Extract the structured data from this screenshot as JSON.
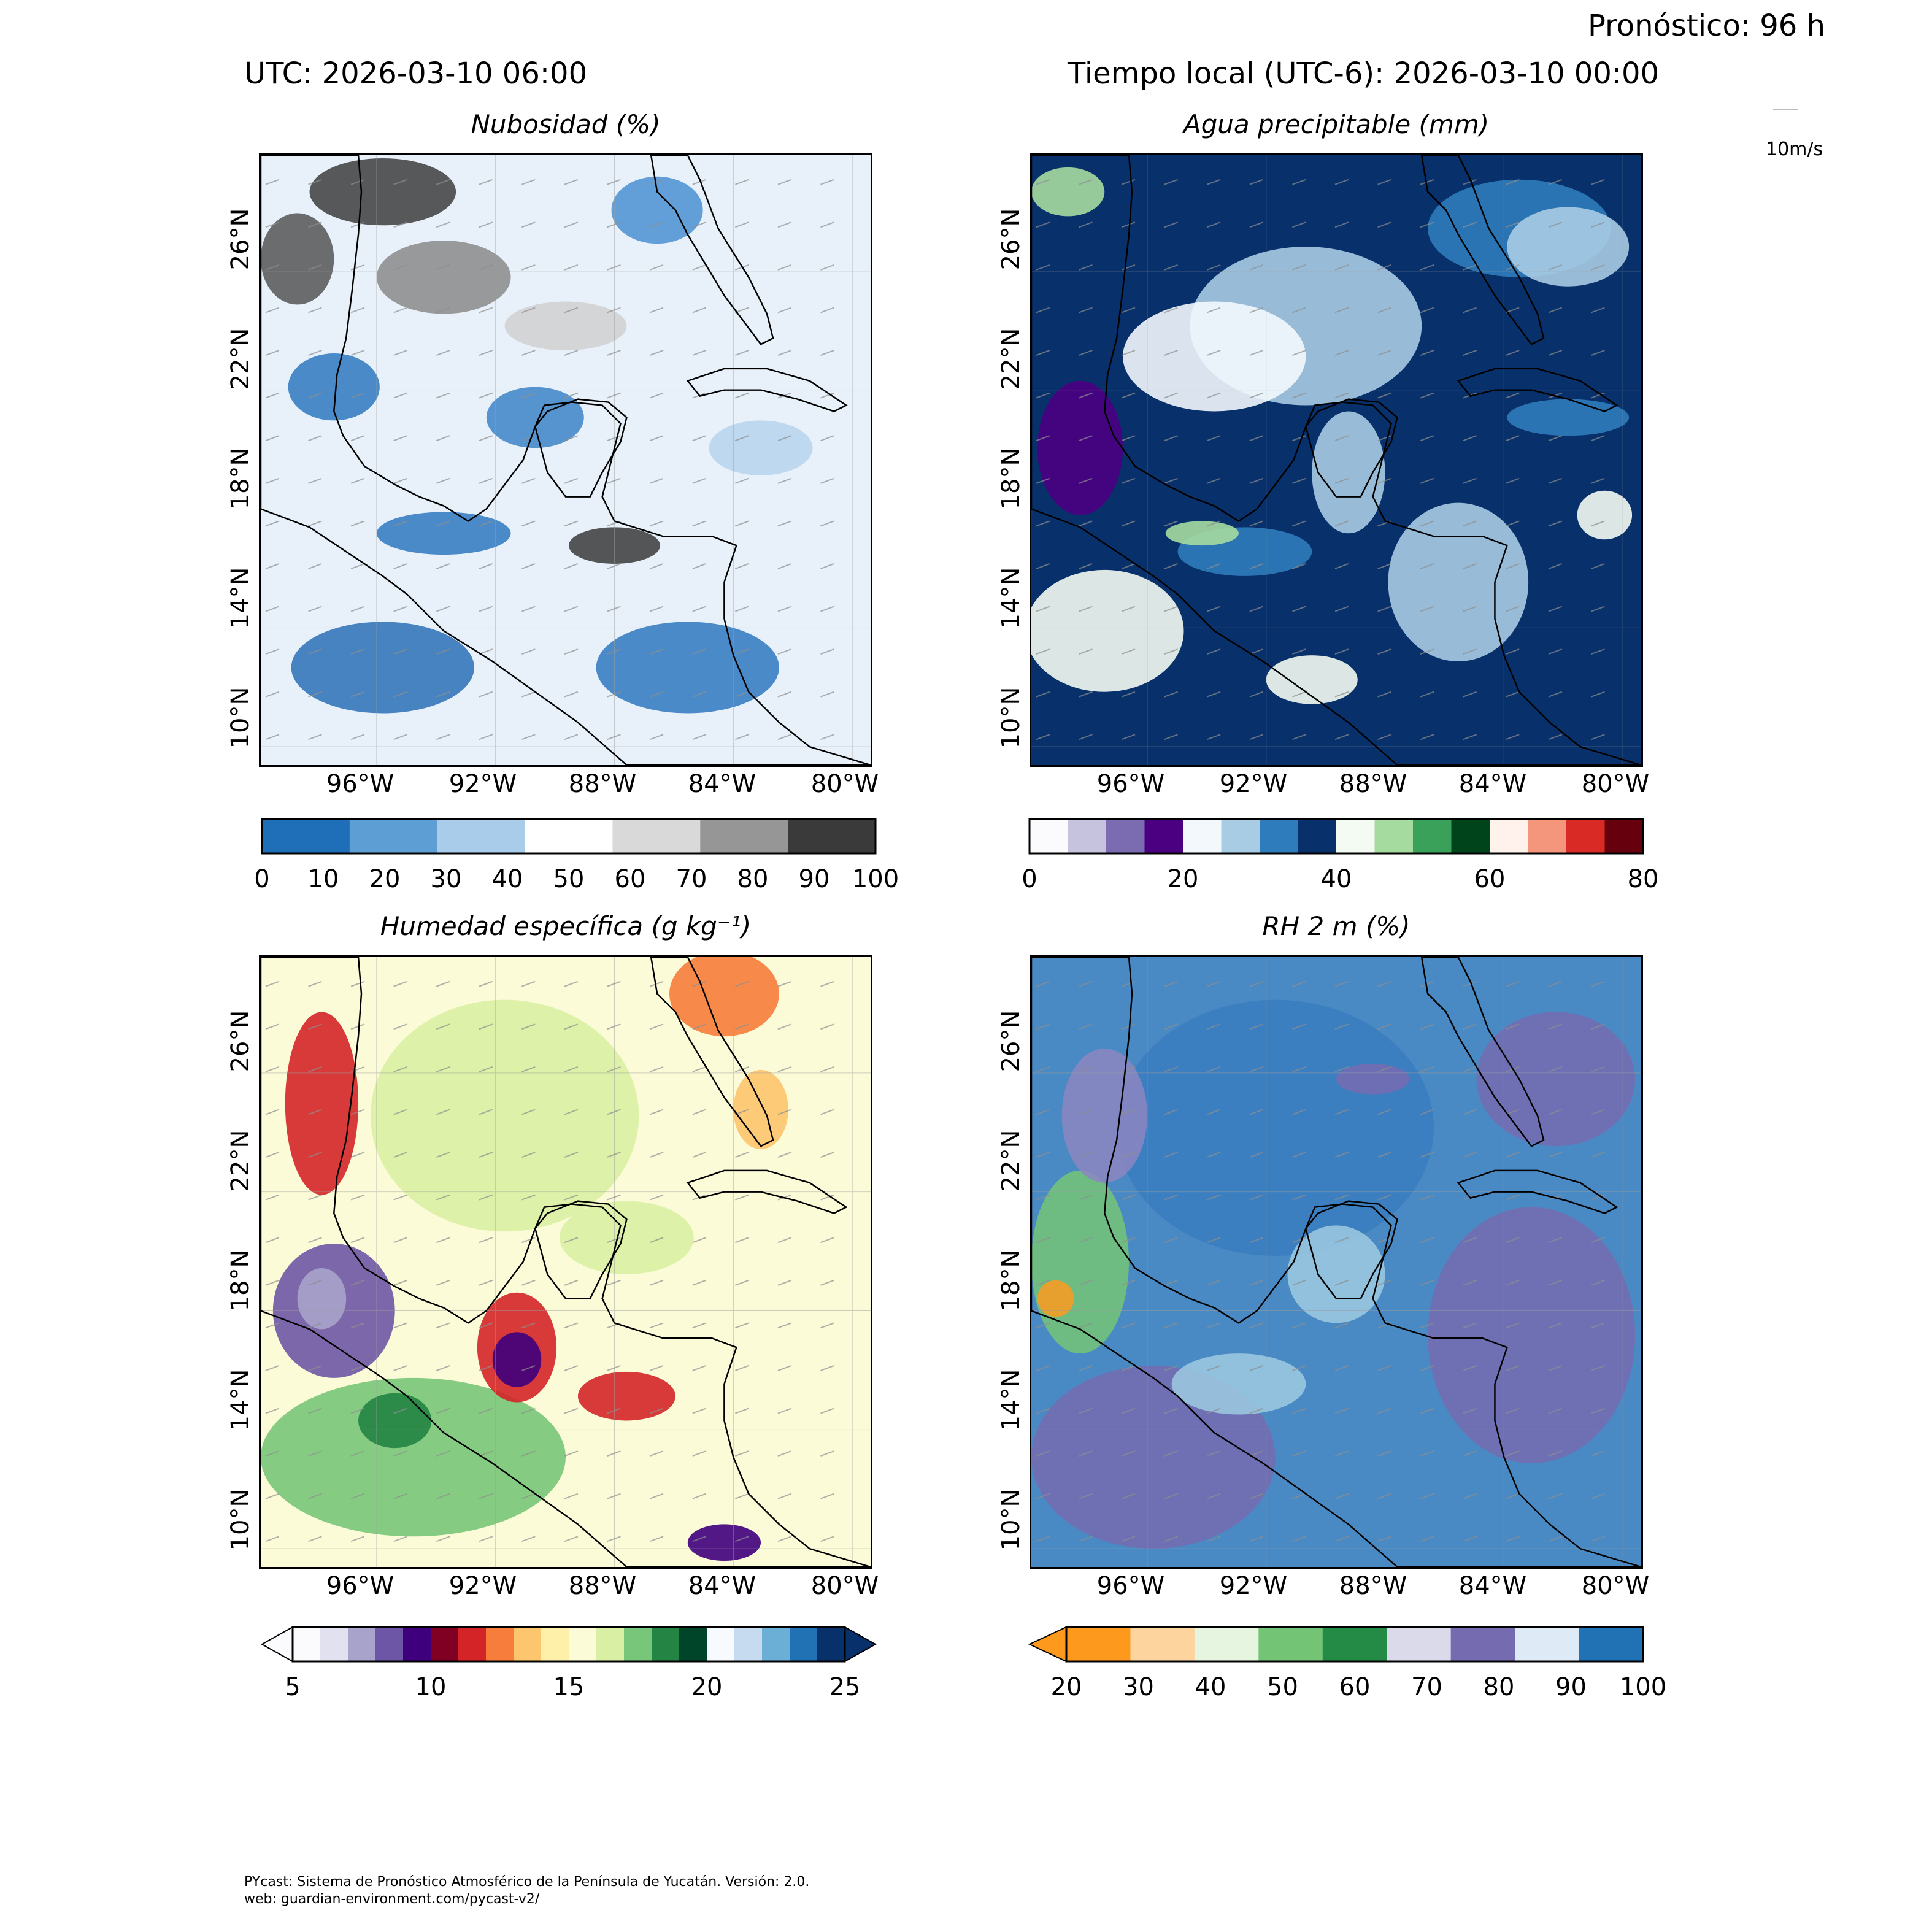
{
  "header": {
    "forecast": "Pronóstico: 96 h",
    "utc": "UTC:  2026-03-10 06:00",
    "local": "Tiempo local (UTC-6): 2026-03-10 00:00"
  },
  "wind_reference": {
    "label": "10m/s"
  },
  "axes": {
    "lat_labels": [
      "26°N",
      "22°N",
      "18°N",
      "14°N",
      "10°N"
    ],
    "lon_labels": [
      "96°W",
      "92°W",
      "88°W",
      "84°W",
      "80°W"
    ],
    "lon_range": [
      "100°W",
      "78°W"
    ],
    "lat_range": [
      "8°N",
      "30°N"
    ]
  },
  "panels": {
    "cloud": {
      "title": "Nubosidad (%)",
      "colormap": "blue-white-gray",
      "colorbar_ticks": [
        "0",
        "10",
        "20",
        "30",
        "40",
        "50",
        "60",
        "70",
        "80",
        "90",
        "100"
      ],
      "colors": [
        "#1f6fb8",
        "#5d9fd4",
        "#a9cceb",
        "#ffffff",
        "#d9d9d9",
        "#969696",
        "#3a3a3a"
      ]
    },
    "pwat": {
      "title": "Agua precipitable (mm)",
      "colormap": "discrete",
      "colorbar_ticks": [
        "0",
        "20",
        "40",
        "60",
        "80"
      ],
      "colors": [
        "#fbfbfd",
        "#c6c3df",
        "#7b6bb0",
        "#4b0082",
        "#f3f8fd",
        "#a8cce4",
        "#2f7cbd",
        "#08306b",
        "#f4fbf2",
        "#a6dba0",
        "#3aa15a",
        "#00441b",
        "#fff1ec",
        "#f4967b",
        "#d92a26",
        "#67000d"
      ]
    },
    "shum": {
      "title": "Humedad específica (g kg⁻¹)",
      "colormap": "discrete",
      "colorbar_ticks": [
        "5",
        "10",
        "15",
        "20",
        "25"
      ],
      "colors": [
        "#fbfbfd",
        "#e2e1ef",
        "#a7a3cb",
        "#6e56a6",
        "#3f007d",
        "#7f0022",
        "#d42428",
        "#f67d3c",
        "#fdc56e",
        "#fef0a8",
        "#fbfbd8",
        "#d9efa3",
        "#78c679",
        "#238443",
        "#004529",
        "#f7fbff",
        "#c6dbef",
        "#6baed6",
        "#2171b5",
        "#08306b"
      ]
    },
    "rh": {
      "title": "RH 2 m (%)",
      "colormap": "orange-green-purple-blue",
      "colorbar_ticks": [
        "20",
        "30",
        "40",
        "50",
        "60",
        "70",
        "80",
        "90",
        "100"
      ],
      "colors": [
        "#fd9a1e",
        "#fdd49e",
        "#e5f5e0",
        "#74c476",
        "#238b45",
        "#dadaeb",
        "#756bb1",
        "#deebf7",
        "#2171b5"
      ]
    }
  },
  "footer": {
    "line1": "PYcast: Sistema de Pronóstico Atmosférico de la Península de Yucatán. Versión: 2.0.",
    "line2": "web: guardian-environment.com/pycast-v2/"
  }
}
